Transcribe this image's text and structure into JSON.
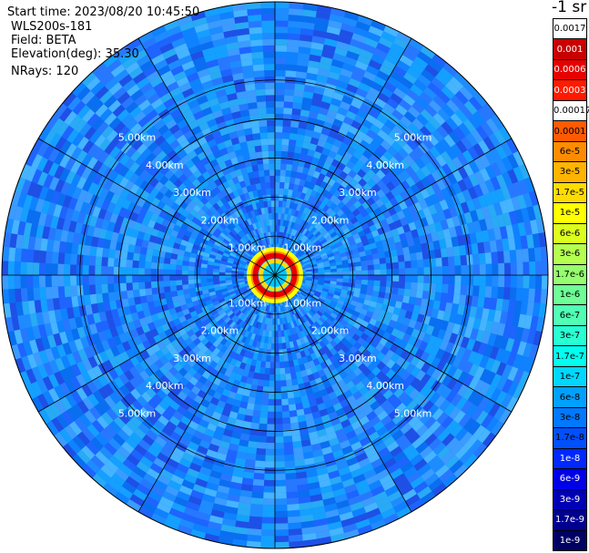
{
  "header": {
    "start_time": "Start time: 2023/08/20 10:45:50",
    "instrument": "WLS200s-181",
    "field": "Field: BETA",
    "elevation": "Elevation(deg): 35.30",
    "nrays": "NRays: 120"
  },
  "colorbar": {
    "title": "-1 sr",
    "labels": [
      "0.0017",
      "0.001",
      "0.0006",
      "0.0003",
      "0.00017",
      "0.0001",
      "6e-5",
      "3e-5",
      "1.7e-5",
      "1e-5",
      "6e-6",
      "3e-6",
      "1.7e-6",
      "1e-6",
      "6e-7",
      "3e-7",
      "1.7e-7",
      "1e-7",
      "6e-8",
      "3e-8",
      "1.7e-8",
      "1e-8",
      "6e-9",
      "3e-9",
      "1.7e-9",
      "1e-9"
    ],
    "colors": [
      "#ffffff",
      "#c80000",
      "#e60000",
      "#ff1a00",
      "#ffffff",
      "#ff5a00",
      "#ff8c00",
      "#ffb400",
      "#ffdc00",
      "#ffff00",
      "#dcff1e",
      "#b4ff50",
      "#96ff6e",
      "#6eff96",
      "#50ffb4",
      "#28ffd2",
      "#00fff0",
      "#00d7ff",
      "#00a0ff",
      "#0078ff",
      "#0050ff",
      "#0028ff",
      "#0000e6",
      "#0000b4",
      "#000090",
      "#000064"
    ],
    "text_colors": [
      "#000000",
      "#ffffff",
      "#ffffff",
      "#ffffff",
      "#000000",
      "#000000",
      "#000000",
      "#000000",
      "#000000",
      "#000000",
      "#000000",
      "#000000",
      "#000000",
      "#000000",
      "#000000",
      "#000000",
      "#000000",
      "#000000",
      "#000000",
      "#000000",
      "#000000",
      "#ffffff",
      "#ffffff",
      "#ffffff",
      "#ffffff",
      "#ffffff"
    ]
  },
  "chart_data": {
    "type": "heatmap",
    "projection": "ppi-polar",
    "field": "BETA",
    "units": "-1 sr",
    "scale": "log",
    "nrays": 120,
    "elevation_deg": 35.3,
    "range_rings_km": [
      1,
      2,
      3,
      4,
      5
    ],
    "ring_labels": {
      "1": "1.00km",
      "2": "2.00km",
      "3": "3.00km",
      "4": "4.00km",
      "5": "5.00km"
    },
    "radial_spokes_deg": [
      0,
      30,
      60,
      90,
      120,
      150,
      180,
      210,
      240,
      270,
      300,
      330
    ],
    "max_range_km": 7,
    "features": [
      {
        "description": "high-backscatter ring",
        "range_km": 0.5,
        "value": 0.0006
      },
      {
        "description": "background",
        "value": 3e-08
      }
    ]
  }
}
